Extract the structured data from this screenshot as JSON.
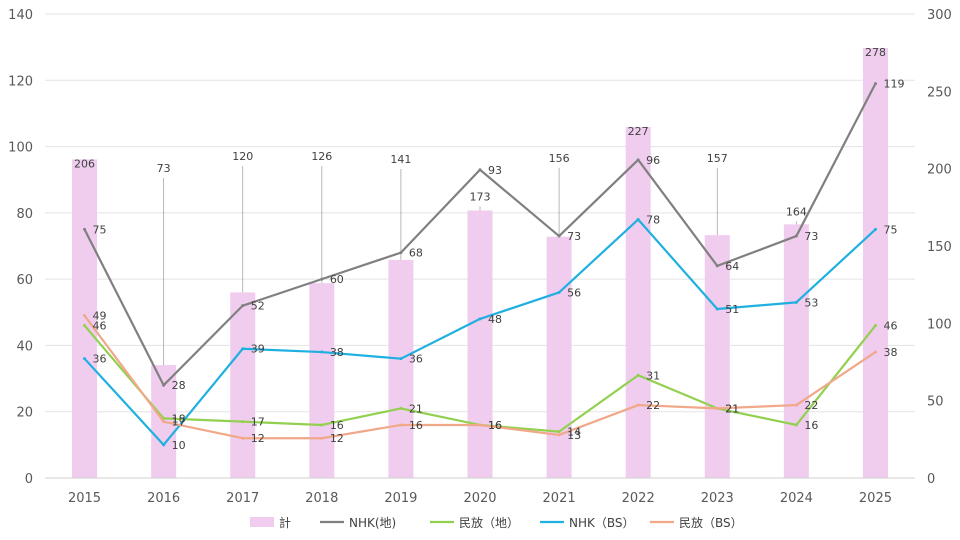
{
  "chart_data": {
    "type": "bar+line",
    "categories": [
      "2015",
      "2016",
      "2017",
      "2018",
      "2019",
      "2020",
      "2021",
      "2022",
      "2023",
      "2024",
      "2025"
    ],
    "bar_series": {
      "name": "計",
      "axis": "right",
      "color": "#f0cdee",
      "values": [
        206,
        73,
        120,
        126,
        141,
        173,
        156,
        227,
        157,
        164,
        278
      ]
    },
    "line_series": [
      {
        "name": "NHK(地)",
        "color": "#808080",
        "values": [
          75,
          28,
          52,
          60,
          68,
          93,
          73,
          96,
          64,
          73,
          119
        ]
      },
      {
        "name": "民放（地）",
        "color": "#92d050",
        "values": [
          46,
          18,
          17,
          16,
          21,
          16,
          14,
          31,
          21,
          16,
          46
        ]
      },
      {
        "name": "NHK（BS）",
        "color": "#1fb0e0",
        "values": [
          36,
          10,
          39,
          38,
          36,
          48,
          56,
          78,
          51,
          53,
          75
        ]
      },
      {
        "name": "民放（BS）",
        "color": "#f0a889",
        "values": [
          49,
          17,
          12,
          12,
          16,
          16,
          13,
          22,
          21,
          22,
          38
        ]
      }
    ],
    "y_left": {
      "min": 0,
      "max": 140,
      "ticks": [
        "0",
        "20",
        "40",
        "60",
        "80",
        "100",
        "120",
        "140"
      ]
    },
    "y_right": {
      "min": 0,
      "max": 300,
      "ticks": [
        "0",
        "50",
        "100",
        "150",
        "200",
        "250",
        "300"
      ]
    },
    "grid": true,
    "legend_position": "bottom",
    "title": "",
    "xlabel": "",
    "ylabel": ""
  }
}
